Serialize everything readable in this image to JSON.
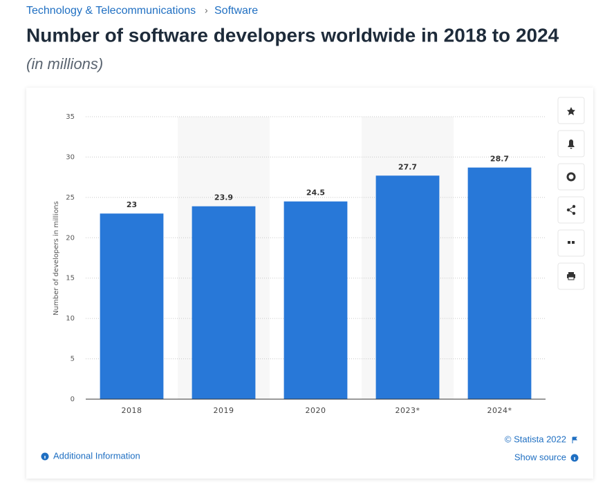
{
  "breadcrumb": {
    "items": [
      "Technology & Telecommunications",
      "Software"
    ],
    "separator": "›"
  },
  "chart_data": {
    "type": "bar",
    "title": "Number of software developers worldwide in 2018 to 2024",
    "subtitle": "(in millions)",
    "y_axis_label": "Number of developers in millions",
    "categories": [
      "2018",
      "2019",
      "2020",
      "2023*",
      "2024*"
    ],
    "values": [
      23,
      23.9,
      24.5,
      27.7,
      28.7
    ],
    "color": "#2878d8",
    "ylim": [
      0,
      35
    ],
    "yticks": [
      0,
      5,
      10,
      15,
      20,
      25,
      30,
      35
    ],
    "grid": true
  },
  "footer": {
    "copyright": "© Statista 2022",
    "show_source": "Show source",
    "additional_information": "Additional Information"
  }
}
